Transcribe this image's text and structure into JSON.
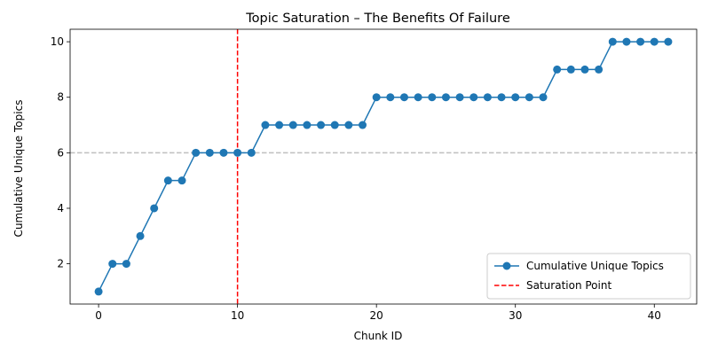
{
  "chart_data": {
    "type": "line",
    "title": "Topic Saturation – The Benefits Of Failure",
    "xlabel": "Chunk ID",
    "ylabel": "Cumulative Unique Topics",
    "xlim": [
      -2.05,
      43.05
    ],
    "ylim": [
      0.55,
      10.45
    ],
    "x_ticks": [
      0,
      10,
      20,
      30,
      40
    ],
    "y_ticks": [
      2,
      4,
      6,
      8,
      10
    ],
    "grid": false,
    "legend_position": "lower-right",
    "colors": {
      "line": "#1f77b4",
      "saturation": "#ff0000",
      "reference": "#bfbfbf"
    },
    "series": [
      {
        "name": "Cumulative Unique Topics",
        "x": [
          0,
          1,
          2,
          3,
          4,
          5,
          6,
          7,
          8,
          9,
          10,
          11,
          12,
          13,
          14,
          15,
          16,
          17,
          18,
          19,
          20,
          21,
          22,
          23,
          24,
          25,
          26,
          27,
          28,
          29,
          30,
          31,
          32,
          33,
          34,
          35,
          36,
          37,
          38,
          39,
          40,
          41
        ],
        "values": [
          1,
          2,
          2,
          3,
          4,
          5,
          5,
          6,
          6,
          6,
          6,
          6,
          7,
          7,
          7,
          7,
          7,
          7,
          7,
          7,
          8,
          8,
          8,
          8,
          8,
          8,
          8,
          8,
          8,
          8,
          8,
          8,
          8,
          9,
          9,
          9,
          9,
          10,
          10,
          10,
          10,
          10
        ]
      }
    ],
    "annotations": [
      {
        "type": "vline",
        "x": 10,
        "label": "Saturation Point",
        "style": "dashed",
        "color": "#ff0000"
      },
      {
        "type": "hline",
        "y": 6,
        "style": "dashed",
        "color": "#bfbfbf"
      }
    ]
  }
}
